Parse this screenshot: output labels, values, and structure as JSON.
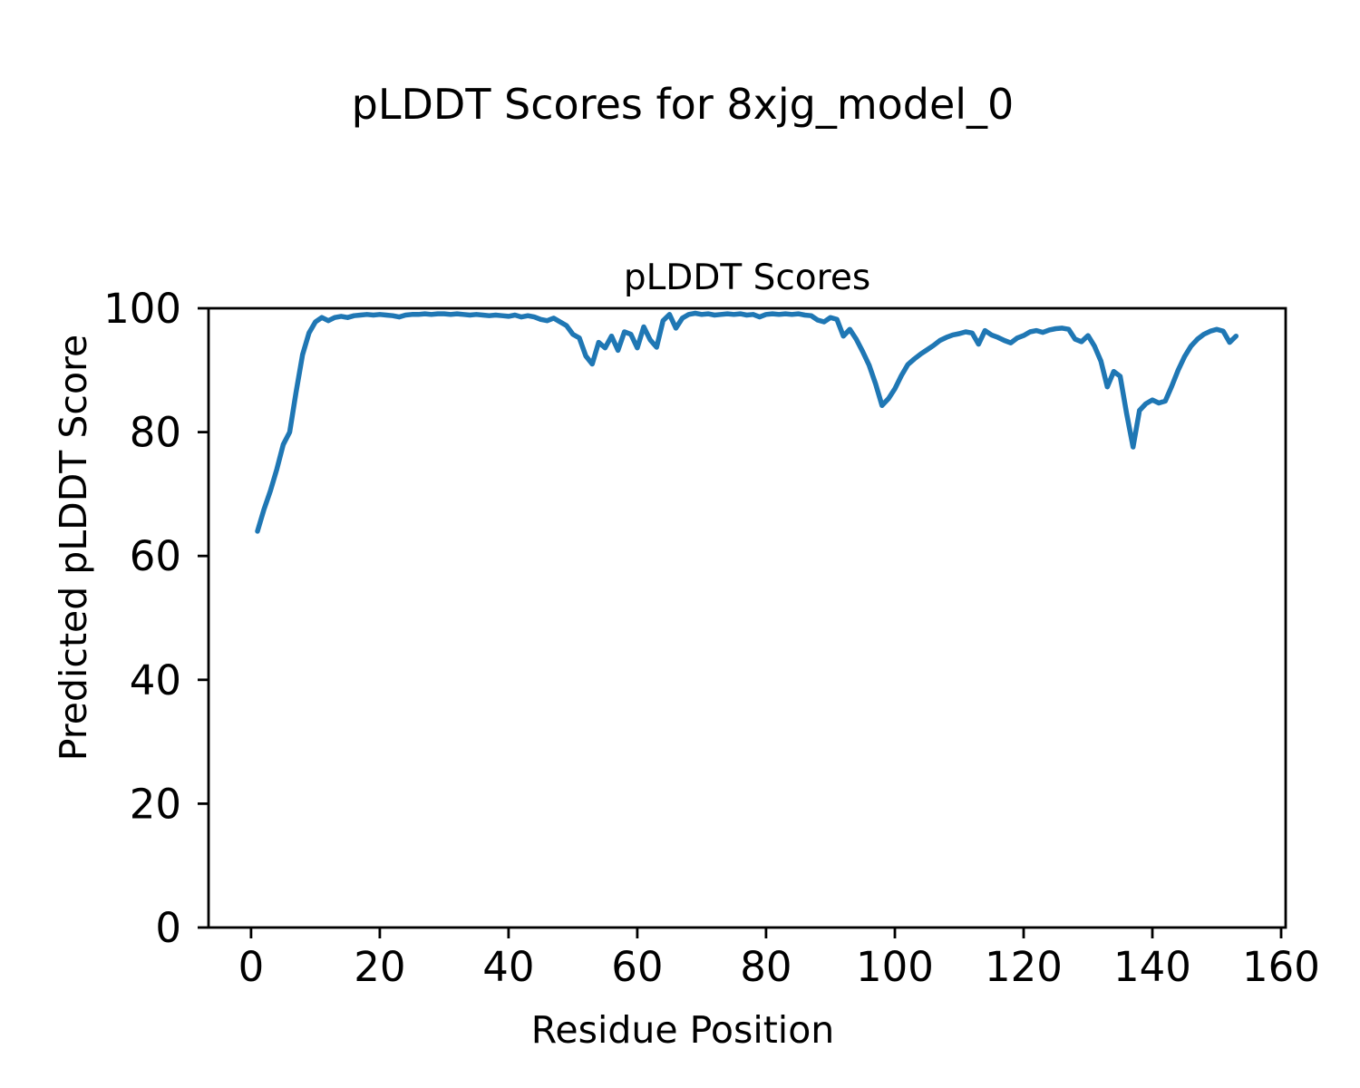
{
  "chart_data": {
    "type": "line",
    "suptitle": "pLDDT Scores for 8xjg_model_0",
    "title": "pLDDT Scores",
    "xlabel": "Residue Position",
    "ylabel": "Predicted pLDDT Score",
    "xlim": [
      -6.6,
      160.7
    ],
    "ylim": [
      0,
      100
    ],
    "xticks": [
      0,
      20,
      40,
      60,
      80,
      100,
      120,
      140,
      160
    ],
    "yticks": [
      0,
      20,
      40,
      60,
      80,
      100
    ],
    "grid": false,
    "legend_position": "none",
    "line_color": "#1f77b4",
    "series": [
      {
        "name": "pLDDT",
        "x_start": 1,
        "x_step": 1,
        "values": [
          64.0,
          67.5,
          70.5,
          74.0,
          78.0,
          80.0,
          86.5,
          92.5,
          96.0,
          97.8,
          98.5,
          98.0,
          98.5,
          98.7,
          98.5,
          98.8,
          98.9,
          99.0,
          98.9,
          99.0,
          98.9,
          98.8,
          98.6,
          98.9,
          99.0,
          99.0,
          99.1,
          99.0,
          99.1,
          99.1,
          99.0,
          99.1,
          99.0,
          98.9,
          99.0,
          98.9,
          98.8,
          98.9,
          98.8,
          98.7,
          98.9,
          98.6,
          98.8,
          98.6,
          98.2,
          98.0,
          98.4,
          97.8,
          97.2,
          95.8,
          95.2,
          92.3,
          91.0,
          94.5,
          93.6,
          95.5,
          93.2,
          96.2,
          95.8,
          93.6,
          97.0,
          94.9,
          93.7,
          98.0,
          99.0,
          96.8,
          98.4,
          99.0,
          99.2,
          99.0,
          99.1,
          98.9,
          99.0,
          99.1,
          99.0,
          99.1,
          98.9,
          99.0,
          98.6,
          99.0,
          99.1,
          99.0,
          99.1,
          99.0,
          99.1,
          98.9,
          98.8,
          98.1,
          97.8,
          98.5,
          98.2,
          95.5,
          96.6,
          95.0,
          93.0,
          90.8,
          87.8,
          84.3,
          85.4,
          87.0,
          89.1,
          90.9,
          91.8,
          92.6,
          93.3,
          94.0,
          94.8,
          95.3,
          95.7,
          95.9,
          96.2,
          96.0,
          94.2,
          96.4,
          95.7,
          95.3,
          94.8,
          94.4,
          95.2,
          95.6,
          96.2,
          96.4,
          96.1,
          96.5,
          96.7,
          96.8,
          96.6,
          95.0,
          94.6,
          95.6,
          93.9,
          91.5,
          87.3,
          89.8,
          89.0,
          83.0,
          77.6,
          83.5,
          84.6,
          85.2,
          84.7,
          85.0,
          87.4,
          90.0,
          92.2,
          93.9,
          95.0,
          95.8,
          96.3,
          96.6,
          96.3,
          94.5,
          95.5
        ]
      }
    ]
  }
}
